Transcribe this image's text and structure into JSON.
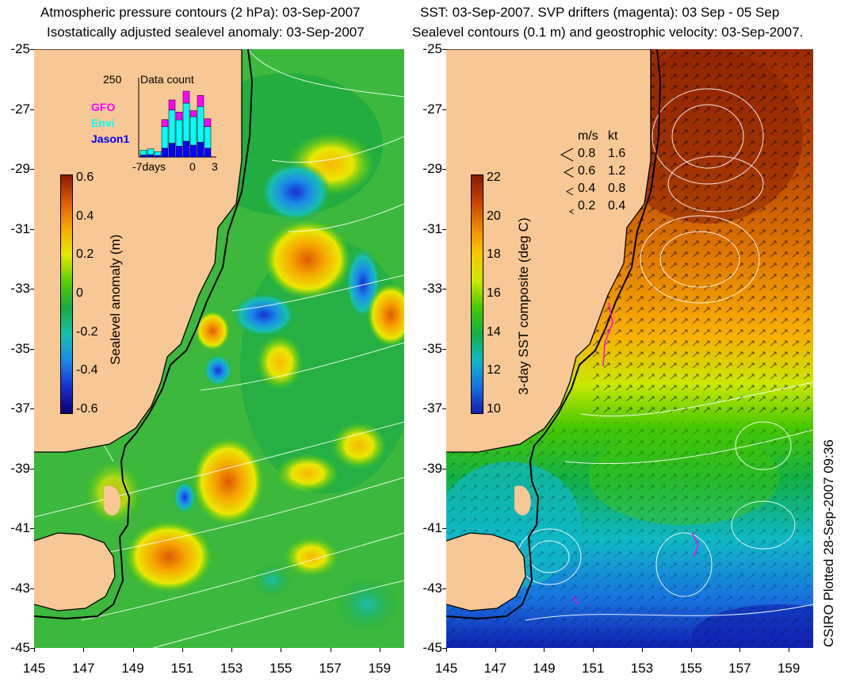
{
  "left_panel": {
    "title_line1": "Atmospheric pressure contours (2 hPa): 03-Sep-2007",
    "title_line2": "Isostatically adjusted sealevel anomaly: 03-Sep-2007",
    "colorbar": {
      "label": "Sealevel anomaly (m)",
      "ticks": [
        "0.6",
        "0.4",
        "0.2",
        "0",
        "-0.2",
        "-0.4",
        "-0.6"
      ],
      "colors": [
        "#8b1a00",
        "#e05a00",
        "#f7a800",
        "#e8e800",
        "#58d000",
        "#1aa840",
        "#18c0b0",
        "#1a8ce8",
        "#1830d0",
        "#0c0070"
      ]
    },
    "inset": {
      "max_label": "250",
      "title": "Data count",
      "legend": [
        "GFO",
        "Envi",
        "Jason1"
      ],
      "legend_colors": [
        "#ff00ff",
        "#00ffff",
        "#0000ff"
      ],
      "x_labels": [
        "-7days",
        "0",
        "3"
      ]
    }
  },
  "right_panel": {
    "title_line1": "SST: 03-Sep-2007. SVP drifters (magenta): 03 Sep - 05 Sep",
    "title_line2": "Sealevel contours (0.1 m) and geostrophic velocity: 03-Sep-2007.",
    "colorbar": {
      "label": "3-day SST composite (deg C)",
      "ticks": [
        "22",
        "20",
        "18",
        "16",
        "14",
        "12",
        "10"
      ],
      "colors": [
        "#8b1a00",
        "#c84000",
        "#f08800",
        "#f8c800",
        "#c8e800",
        "#48c800",
        "#10b048",
        "#10b8c8",
        "#1870e0",
        "#1020b0"
      ]
    },
    "velocity_legend": {
      "header_ms": "m/s",
      "header_kt": "kt",
      "rows": [
        {
          "ms": "0.8",
          "kt": "1.6"
        },
        {
          "ms": "0.6",
          "kt": "1.2"
        },
        {
          "ms": "0.4",
          "kt": "0.8"
        },
        {
          "ms": "0.2",
          "kt": "0.4"
        }
      ]
    }
  },
  "axes": {
    "y_ticks": [
      "-25",
      "-27",
      "-29",
      "-31",
      "-33",
      "-35",
      "-37",
      "-39",
      "-41",
      "-43",
      "-45"
    ],
    "x_ticks": [
      "145",
      "147",
      "149",
      "151",
      "153",
      "155",
      "157",
      "159"
    ]
  },
  "credit": "CSIRO Plotted 28-Sep-2007 09:36",
  "colors": {
    "land": "#f7c896",
    "coastline": "#000000",
    "contour": "#ffffff",
    "drifter": "#ff00ff"
  }
}
